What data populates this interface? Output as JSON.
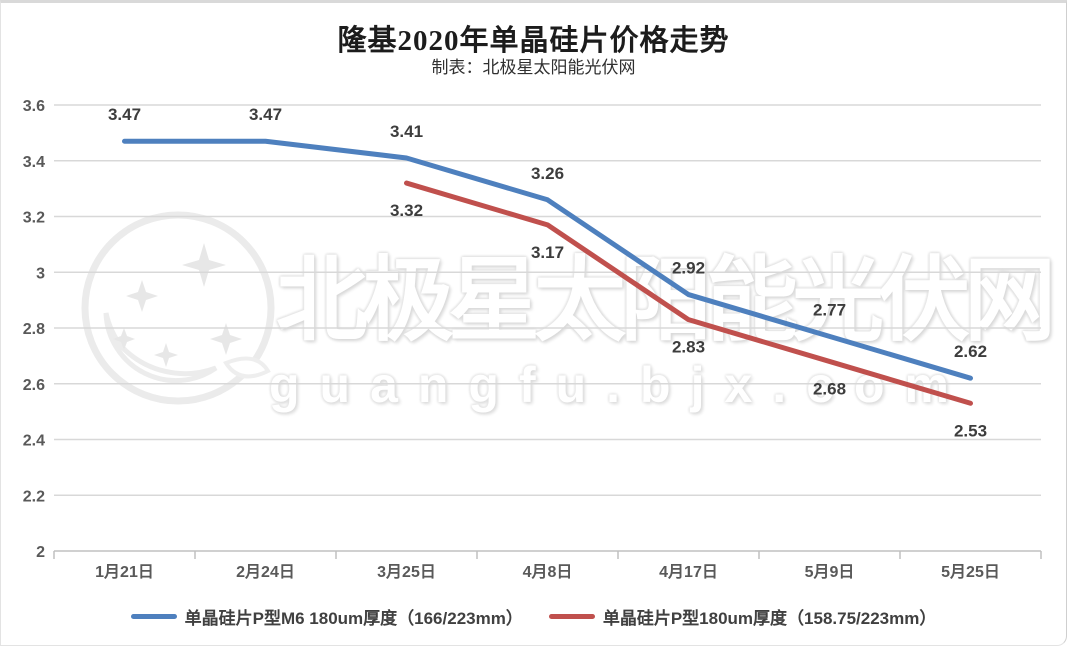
{
  "title": "隆基2020年单晶硅片价格走势",
  "subtitle": "制表：北极星太阳能光伏网",
  "watermark": {
    "logo": "bjx-star-moon-logo",
    "cn": "北极星太阳能光伏网",
    "domain": "guangfu.bjx.com"
  },
  "colors": {
    "series_blue": "#4E80BE",
    "series_red": "#C0504D",
    "gridline": "#D8D8D8",
    "axis": "#C0C0C0",
    "data_label": "#3D3D3D",
    "tick_text": "#595959"
  },
  "chart_data": {
    "type": "line",
    "title": "隆基2020年单晶硅片价格走势",
    "subtitle": "制表：北极星太阳能光伏网",
    "categories": [
      "1月21日",
      "2月24日",
      "3月25日",
      "4月8日",
      "4月17日",
      "5月9日",
      "5月25日"
    ],
    "series": [
      {
        "name": "单晶硅片P型M6 180um厚度（166/223mm）",
        "color": "#4E80BE",
        "values": [
          3.47,
          3.47,
          3.41,
          3.26,
          2.92,
          2.77,
          2.62
        ],
        "label_position": "above"
      },
      {
        "name": "单晶硅片P型180um厚度（158.75/223mm）",
        "color": "#C0504D",
        "values": [
          null,
          null,
          3.32,
          3.17,
          2.83,
          2.68,
          2.53
        ],
        "label_position": "below"
      }
    ],
    "xlabel": "",
    "ylabel": "",
    "ylim": [
      2,
      3.6
    ],
    "yticks": [
      2,
      2.2,
      2.4,
      2.6,
      2.8,
      3,
      3.2,
      3.4,
      3.6
    ],
    "grid": true,
    "legend_position": "bottom"
  }
}
